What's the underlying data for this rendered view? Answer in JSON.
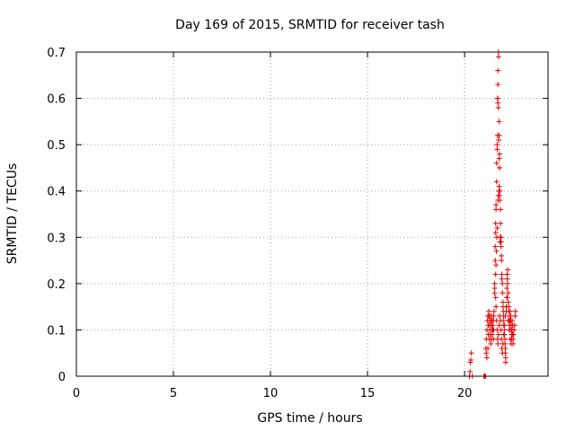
{
  "chart_data": {
    "type": "scatter",
    "title": "Day 169 of 2015, SRMTID for receiver tash",
    "xlabel": "GPS time / hours",
    "ylabel": "SRMTID / TECUs",
    "xlim": [
      0,
      24.3
    ],
    "ylim": [
      0,
      0.7
    ],
    "x_ticks": [
      0,
      5,
      10,
      15,
      20
    ],
    "x_tick_labels": [
      "0",
      "5",
      "10",
      "15",
      "20"
    ],
    "y_ticks": [
      0,
      0.1,
      0.2,
      0.3,
      0.4,
      0.5,
      0.6,
      0.7
    ],
    "y_tick_labels": [
      "0",
      "0.1",
      "0.2",
      "0.3",
      "0.4",
      "0.5",
      "0.6",
      "0.7"
    ],
    "grid": true,
    "marker": "+",
    "marker_color": "#e00000",
    "series": [
      {
        "name": "SRMTID",
        "x": [
          20.25,
          20.28,
          20.3,
          20.32,
          20.35,
          20.4,
          21.0,
          21.05,
          21.08,
          21.1,
          21.12,
          21.12,
          21.15,
          21.15,
          21.18,
          21.2,
          21.2,
          21.22,
          21.22,
          21.25,
          21.25,
          21.28,
          21.28,
          21.3,
          21.3,
          21.32,
          21.32,
          21.35,
          21.35,
          21.38,
          21.38,
          21.4,
          21.4,
          21.42,
          21.42,
          21.45,
          21.45,
          21.48,
          21.48,
          21.5,
          21.5,
          21.52,
          21.55,
          21.55,
          21.58,
          21.58,
          21.6,
          21.6,
          21.62,
          21.62,
          21.65,
          21.65,
          21.68,
          21.68,
          21.7,
          21.7,
          21.72,
          21.72,
          21.75,
          21.75,
          21.78,
          21.78,
          21.8,
          21.8,
          21.82,
          21.82,
          21.85,
          21.85,
          21.88,
          21.88,
          21.9,
          21.9,
          21.92,
          21.92,
          21.95,
          21.95,
          21.98,
          21.98,
          22.0,
          22.0,
          22.02,
          22.02,
          22.05,
          22.05,
          22.08,
          22.08,
          22.1,
          22.1,
          22.12,
          22.12,
          22.15,
          22.15,
          22.18,
          22.18,
          22.2,
          22.2,
          22.22,
          22.22,
          22.25,
          22.25,
          22.28,
          22.28,
          22.3,
          22.3,
          22.32,
          22.32,
          22.35,
          22.35,
          22.38,
          22.38,
          22.4,
          22.4,
          22.42,
          22.42,
          22.45,
          22.45,
          22.48,
          22.48,
          22.5,
          22.5,
          22.52,
          22.55,
          22.58,
          22.6,
          22.62,
          21.55,
          21.6,
          21.62,
          21.65,
          21.68,
          21.7,
          21.72,
          21.75,
          21.78,
          21.8,
          21.85,
          21.88,
          21.9,
          21.92,
          21.95,
          21.98,
          22.02,
          22.05,
          22.1,
          22.15,
          22.2,
          22.25,
          22.3,
          22.35,
          22.4,
          21.7,
          21.72,
          21.74,
          21.76,
          21.78,
          21.8,
          21.82,
          21.84,
          21.86,
          21.88,
          21.72,
          21.74,
          21.76,
          21.78,
          21.8,
          21.68,
          21.66,
          21.64,
          21.62,
          21.6
        ],
        "y": [
          0.0,
          0.01,
          0.03,
          0.035,
          0.05,
          0.0,
          0.0,
          0.0,
          0.0,
          0.06,
          0.05,
          0.08,
          0.1,
          0.04,
          0.12,
          0.13,
          0.06,
          0.11,
          0.09,
          0.13,
          0.14,
          0.12,
          0.08,
          0.1,
          0.11,
          0.13,
          0.09,
          0.12,
          0.07,
          0.11,
          0.08,
          0.1,
          0.13,
          0.12,
          0.09,
          0.11,
          0.1,
          0.12,
          0.08,
          0.13,
          0.1,
          0.14,
          0.18,
          0.2,
          0.25,
          0.28,
          0.31,
          0.33,
          0.36,
          0.37,
          0.42,
          0.46,
          0.49,
          0.5,
          0.52,
          0.6,
          0.63,
          0.66,
          0.69,
          0.7,
          0.55,
          0.52,
          0.48,
          0.45,
          0.4,
          0.38,
          0.36,
          0.33,
          0.3,
          0.29,
          0.26,
          0.25,
          0.22,
          0.21,
          0.2,
          0.18,
          0.16,
          0.15,
          0.14,
          0.13,
          0.12,
          0.11,
          0.1,
          0.09,
          0.08,
          0.07,
          0.06,
          0.05,
          0.04,
          0.03,
          0.14,
          0.15,
          0.17,
          0.19,
          0.21,
          0.22,
          0.23,
          0.2,
          0.18,
          0.16,
          0.15,
          0.14,
          0.13,
          0.12,
          0.11,
          0.1,
          0.12,
          0.14,
          0.13,
          0.12,
          0.11,
          0.1,
          0.09,
          0.08,
          0.1,
          0.12,
          0.11,
          0.09,
          0.08,
          0.07,
          0.09,
          0.1,
          0.11,
          0.13,
          0.14,
          0.19,
          0.17,
          0.15,
          0.12,
          0.1,
          0.08,
          0.07,
          0.09,
          0.11,
          0.13,
          0.12,
          0.1,
          0.08,
          0.06,
          0.05,
          0.07,
          0.09,
          0.11,
          0.13,
          0.15,
          0.17,
          0.12,
          0.1,
          0.08,
          0.07,
          0.6,
          0.59,
          0.58,
          0.51,
          0.47,
          0.45,
          0.29,
          0.3,
          0.29,
          0.28,
          0.38,
          0.39,
          0.4,
          0.41,
          0.39,
          0.32,
          0.3,
          0.27,
          0.24,
          0.22
        ]
      }
    ]
  }
}
